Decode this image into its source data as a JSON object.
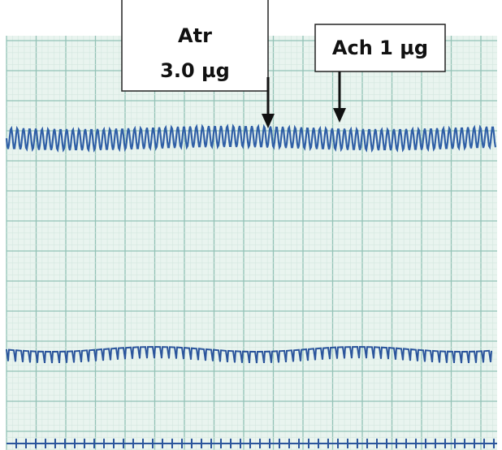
{
  "annotations": [
    {
      "lines": [
        "Atr",
        "3.0 µg"
      ]
    },
    {
      "lines": [
        "Ach 1 µg"
      ]
    }
  ]
}
